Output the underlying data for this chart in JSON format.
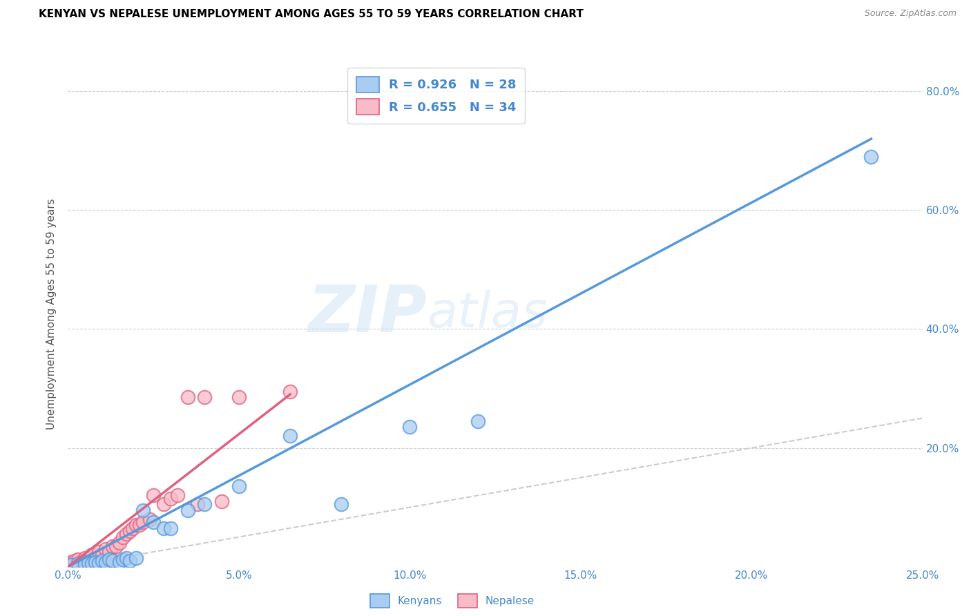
{
  "title": "KENYAN VS NEPALESE UNEMPLOYMENT AMONG AGES 55 TO 59 YEARS CORRELATION CHART",
  "source": "Source: ZipAtlas.com",
  "ylabel": "Unemployment Among Ages 55 to 59 years",
  "xlim": [
    0.0,
    0.25
  ],
  "ylim": [
    0.0,
    0.85
  ],
  "background_color": "#ffffff",
  "grid_color": "#cccccc",
  "watermark_zip": "ZIP",
  "watermark_atlas": "atlas",
  "kenyan_color": "#aaccf0",
  "nepalese_color": "#f8bbc8",
  "kenyan_edge_color": "#5599dd",
  "nepalese_edge_color": "#e06080",
  "kenyan_R": 0.926,
  "kenyan_N": 28,
  "nepalese_R": 0.655,
  "nepalese_N": 34,
  "title_color": "#000000",
  "source_color": "#888888",
  "label_color": "#4488cc",
  "diagonal_color": "#cccccc",
  "kenyan_line_color": "#5599dd",
  "nepalese_line_color": "#e06080",
  "kenyan_scatter_x": [
    0.001,
    0.003,
    0.005,
    0.006,
    0.007,
    0.008,
    0.009,
    0.01,
    0.011,
    0.012,
    0.013,
    0.015,
    0.016,
    0.017,
    0.018,
    0.02,
    0.022,
    0.025,
    0.028,
    0.03,
    0.035,
    0.04,
    0.05,
    0.065,
    0.08,
    0.1,
    0.12,
    0.235
  ],
  "kenyan_scatter_y": [
    0.003,
    0.005,
    0.004,
    0.007,
    0.005,
    0.008,
    0.006,
    0.01,
    0.008,
    0.012,
    0.01,
    0.008,
    0.012,
    0.015,
    0.01,
    0.015,
    0.095,
    0.075,
    0.065,
    0.065,
    0.095,
    0.105,
    0.135,
    0.22,
    0.105,
    0.235,
    0.245,
    0.69
  ],
  "nepalese_scatter_x": [
    0.0,
    0.001,
    0.002,
    0.003,
    0.004,
    0.005,
    0.006,
    0.007,
    0.008,
    0.009,
    0.01,
    0.011,
    0.012,
    0.013,
    0.014,
    0.015,
    0.016,
    0.017,
    0.018,
    0.019,
    0.02,
    0.021,
    0.022,
    0.024,
    0.025,
    0.028,
    0.03,
    0.032,
    0.035,
    0.038,
    0.04,
    0.045,
    0.05,
    0.065
  ],
  "nepalese_scatter_y": [
    0.005,
    0.008,
    0.01,
    0.012,
    0.008,
    0.015,
    0.01,
    0.02,
    0.015,
    0.025,
    0.02,
    0.03,
    0.025,
    0.035,
    0.035,
    0.04,
    0.05,
    0.055,
    0.06,
    0.065,
    0.07,
    0.07,
    0.075,
    0.08,
    0.12,
    0.105,
    0.115,
    0.12,
    0.285,
    0.105,
    0.285,
    0.11,
    0.285,
    0.295
  ],
  "kenyan_line_x": [
    0.0,
    0.235
  ],
  "kenyan_line_y": [
    0.0,
    0.72
  ],
  "nepalese_line_x": [
    0.0,
    0.065
  ],
  "nepalese_line_y": [
    0.0,
    0.29
  ]
}
